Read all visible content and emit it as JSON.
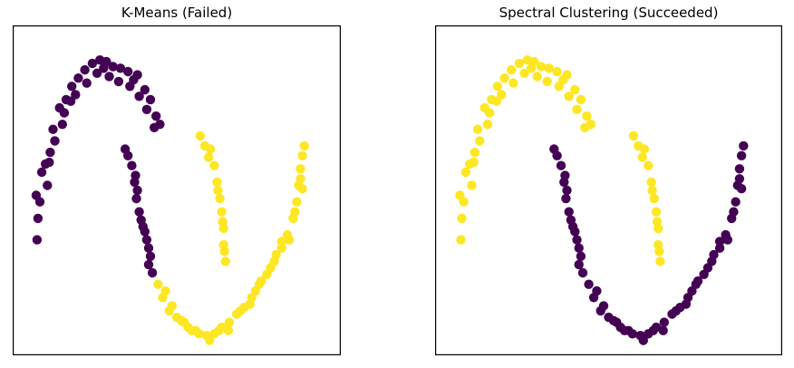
{
  "colors": {
    "cluster_a": "#440154",
    "cluster_b": "#fde725",
    "frame": "#000000"
  },
  "chart_data": [
    {
      "type": "scatter",
      "title": "K-Means (Failed)",
      "xlim": [
        -1.25,
        2.25
      ],
      "ylim": [
        -0.75,
        1.25
      ],
      "grid": false,
      "series": [
        {
          "color": "#440154",
          "points": [
            [
              -1.0,
              0.22
            ],
            [
              -0.98,
              0.08
            ],
            [
              -0.99,
              -0.05
            ],
            [
              -0.96,
              0.18
            ],
            [
              -0.9,
              0.41
            ],
            [
              -0.88,
              0.28
            ],
            [
              -0.85,
              0.48
            ],
            [
              -0.82,
              0.62
            ],
            [
              -0.75,
              0.75
            ],
            [
              -0.72,
              0.65
            ],
            [
              -0.68,
              0.8
            ],
            [
              -0.62,
              0.88
            ],
            [
              -0.55,
              0.93
            ],
            [
              -0.48,
              0.98
            ],
            [
              -0.4,
              1.02
            ],
            [
              -0.32,
              1.04
            ],
            [
              -0.25,
              1.03
            ],
            [
              -0.18,
              1.0
            ],
            [
              -0.1,
              0.99
            ],
            [
              -0.02,
              0.97
            ],
            [
              0.08,
              0.95
            ],
            [
              0.16,
              0.86
            ],
            [
              0.22,
              0.8
            ],
            [
              0.28,
              0.7
            ],
            [
              0.32,
              0.65
            ],
            [
              -0.94,
              0.36
            ],
            [
              -0.8,
              0.55
            ],
            [
              -0.7,
              0.72
            ],
            [
              -0.58,
              0.83
            ],
            [
              -0.46,
              0.9
            ],
            [
              -0.35,
              0.96
            ],
            [
              -0.22,
              0.94
            ],
            [
              -0.12,
              0.91
            ],
            [
              0.0,
              0.88
            ],
            [
              0.1,
              0.82
            ],
            [
              0.18,
              0.74
            ],
            [
              0.26,
              0.63
            ],
            [
              -0.86,
              0.42
            ],
            [
              -0.63,
              0.79
            ],
            [
              -0.28,
              0.99
            ],
            [
              0.04,
              0.92
            ],
            [
              -0.05,
              0.5
            ],
            [
              -0.02,
              0.46
            ],
            [
              0.02,
              0.4
            ],
            [
              0.05,
              0.3
            ],
            [
              0.07,
              0.2
            ],
            [
              0.1,
              0.12
            ],
            [
              0.14,
              0.03
            ],
            [
              0.18,
              -0.05
            ],
            [
              0.22,
              -0.15
            ],
            [
              0.24,
              -0.25
            ],
            [
              0.12,
              0.07
            ],
            [
              0.2,
              -0.1
            ],
            [
              0.08,
              0.25
            ],
            [
              0.16,
              0.0
            ],
            [
              0.2,
              -0.2
            ],
            [
              0.06,
              0.34
            ]
          ]
        },
        {
          "color": "#fde725",
          "points": [
            [
              0.3,
              -0.32
            ],
            [
              0.35,
              -0.4
            ],
            [
              0.42,
              -0.48
            ],
            [
              0.5,
              -0.52
            ],
            [
              0.58,
              -0.55
            ],
            [
              0.66,
              -0.6
            ],
            [
              0.74,
              -0.62
            ],
            [
              0.82,
              -0.63
            ],
            [
              0.9,
              -0.62
            ],
            [
              0.98,
              -0.58
            ],
            [
              1.06,
              -0.55
            ],
            [
              1.14,
              -0.5
            ],
            [
              1.22,
              -0.46
            ],
            [
              1.3,
              -0.4
            ],
            [
              1.38,
              -0.32
            ],
            [
              1.46,
              -0.26
            ],
            [
              1.54,
              -0.18
            ],
            [
              1.62,
              -0.1
            ],
            [
              1.68,
              -0.02
            ],
            [
              1.74,
              0.08
            ],
            [
              1.78,
              0.18
            ],
            [
              1.8,
              0.28
            ],
            [
              1.82,
              0.38
            ],
            [
              1.84,
              0.46
            ],
            [
              1.86,
              0.52
            ],
            [
              1.7,
              -0.05
            ],
            [
              1.76,
              0.12
            ],
            [
              1.82,
              0.32
            ],
            [
              1.5,
              -0.22
            ],
            [
              1.28,
              -0.44
            ],
            [
              1.05,
              -0.6
            ],
            [
              0.85,
              -0.66
            ],
            [
              0.62,
              -0.58
            ],
            [
              0.45,
              -0.45
            ],
            [
              0.38,
              -0.36
            ],
            [
              0.75,
              0.58
            ],
            [
              0.8,
              0.52
            ],
            [
              0.84,
              0.45
            ],
            [
              0.9,
              0.4
            ],
            [
              0.93,
              0.3
            ],
            [
              0.96,
              0.2
            ],
            [
              0.98,
              0.12
            ],
            [
              1.0,
              0.02
            ],
            [
              1.0,
              -0.08
            ],
            [
              1.02,
              -0.18
            ],
            [
              0.86,
              0.5
            ],
            [
              0.94,
              0.25
            ],
            [
              0.99,
              0.06
            ],
            [
              1.01,
              -0.12
            ],
            [
              1.56,
              -0.14
            ],
            [
              1.34,
              -0.36
            ],
            [
              1.18,
              -0.48
            ],
            [
              0.95,
              -0.6
            ],
            [
              0.7,
              -0.6
            ],
            [
              0.55,
              -0.54
            ],
            [
              1.62,
              -0.06
            ],
            [
              1.84,
              0.26
            ],
            [
              1.4,
              -0.3
            ]
          ]
        }
      ]
    },
    {
      "type": "scatter",
      "title": "Spectral Clustering (Succeeded)",
      "xlim": [
        -1.25,
        2.25
      ],
      "ylim": [
        -0.75,
        1.25
      ],
      "grid": false,
      "series": [
        {
          "color": "#fde725",
          "points": [
            [
              -1.0,
              0.22
            ],
            [
              -0.98,
              0.08
            ],
            [
              -0.99,
              -0.05
            ],
            [
              -0.96,
              0.18
            ],
            [
              -0.9,
              0.41
            ],
            [
              -0.88,
              0.28
            ],
            [
              -0.85,
              0.48
            ],
            [
              -0.82,
              0.62
            ],
            [
              -0.75,
              0.75
            ],
            [
              -0.72,
              0.65
            ],
            [
              -0.68,
              0.8
            ],
            [
              -0.62,
              0.88
            ],
            [
              -0.55,
              0.93
            ],
            [
              -0.48,
              0.98
            ],
            [
              -0.4,
              1.02
            ],
            [
              -0.32,
              1.04
            ],
            [
              -0.25,
              1.03
            ],
            [
              -0.18,
              1.0
            ],
            [
              -0.1,
              0.99
            ],
            [
              -0.02,
              0.97
            ],
            [
              0.08,
              0.95
            ],
            [
              0.16,
              0.86
            ],
            [
              0.22,
              0.8
            ],
            [
              0.28,
              0.7
            ],
            [
              0.32,
              0.65
            ],
            [
              -0.94,
              0.36
            ],
            [
              -0.8,
              0.55
            ],
            [
              -0.7,
              0.72
            ],
            [
              -0.58,
              0.83
            ],
            [
              -0.46,
              0.9
            ],
            [
              -0.35,
              0.96
            ],
            [
              -0.22,
              0.94
            ],
            [
              -0.12,
              0.91
            ],
            [
              0.0,
              0.88
            ],
            [
              0.1,
              0.82
            ],
            [
              0.18,
              0.74
            ],
            [
              0.26,
              0.63
            ],
            [
              -0.86,
              0.42
            ],
            [
              -0.63,
              0.79
            ],
            [
              -0.28,
              0.99
            ],
            [
              0.04,
              0.92
            ],
            [
              0.75,
              0.58
            ],
            [
              0.8,
              0.52
            ],
            [
              0.84,
              0.45
            ],
            [
              0.9,
              0.4
            ],
            [
              0.93,
              0.3
            ],
            [
              0.96,
              0.2
            ],
            [
              0.98,
              0.12
            ],
            [
              1.0,
              0.02
            ],
            [
              1.0,
              -0.08
            ],
            [
              1.02,
              -0.18
            ],
            [
              0.86,
              0.5
            ],
            [
              0.94,
              0.25
            ],
            [
              0.99,
              0.06
            ],
            [
              1.01,
              -0.12
            ]
          ]
        },
        {
          "color": "#440154",
          "points": [
            [
              -0.05,
              0.5
            ],
            [
              -0.02,
              0.46
            ],
            [
              0.02,
              0.4
            ],
            [
              0.05,
              0.3
            ],
            [
              0.07,
              0.2
            ],
            [
              0.1,
              0.12
            ],
            [
              0.14,
              0.03
            ],
            [
              0.18,
              -0.05
            ],
            [
              0.22,
              -0.15
            ],
            [
              0.24,
              -0.25
            ],
            [
              0.12,
              0.07
            ],
            [
              0.2,
              -0.1
            ],
            [
              0.08,
              0.25
            ],
            [
              0.16,
              0.0
            ],
            [
              0.2,
              -0.2
            ],
            [
              0.06,
              0.34
            ],
            [
              0.3,
              -0.32
            ],
            [
              0.35,
              -0.4
            ],
            [
              0.42,
              -0.48
            ],
            [
              0.5,
              -0.52
            ],
            [
              0.58,
              -0.55
            ],
            [
              0.66,
              -0.6
            ],
            [
              0.74,
              -0.62
            ],
            [
              0.82,
              -0.63
            ],
            [
              0.9,
              -0.62
            ],
            [
              0.98,
              -0.58
            ],
            [
              1.06,
              -0.55
            ],
            [
              1.14,
              -0.5
            ],
            [
              1.22,
              -0.46
            ],
            [
              1.3,
              -0.4
            ],
            [
              1.38,
              -0.32
            ],
            [
              1.46,
              -0.26
            ],
            [
              1.54,
              -0.18
            ],
            [
              1.62,
              -0.1
            ],
            [
              1.68,
              -0.02
            ],
            [
              1.74,
              0.08
            ],
            [
              1.78,
              0.18
            ],
            [
              1.8,
              0.28
            ],
            [
              1.82,
              0.38
            ],
            [
              1.84,
              0.46
            ],
            [
              1.86,
              0.52
            ],
            [
              1.7,
              -0.05
            ],
            [
              1.76,
              0.12
            ],
            [
              1.82,
              0.32
            ],
            [
              1.5,
              -0.22
            ],
            [
              1.28,
              -0.44
            ],
            [
              1.05,
              -0.6
            ],
            [
              0.85,
              -0.66
            ],
            [
              0.62,
              -0.58
            ],
            [
              0.45,
              -0.45
            ],
            [
              0.38,
              -0.36
            ],
            [
              1.56,
              -0.14
            ],
            [
              1.34,
              -0.36
            ],
            [
              1.18,
              -0.48
            ],
            [
              0.95,
              -0.6
            ],
            [
              0.7,
              -0.6
            ],
            [
              0.55,
              -0.54
            ],
            [
              1.62,
              -0.06
            ],
            [
              1.84,
              0.26
            ],
            [
              1.4,
              -0.3
            ]
          ]
        }
      ]
    }
  ]
}
